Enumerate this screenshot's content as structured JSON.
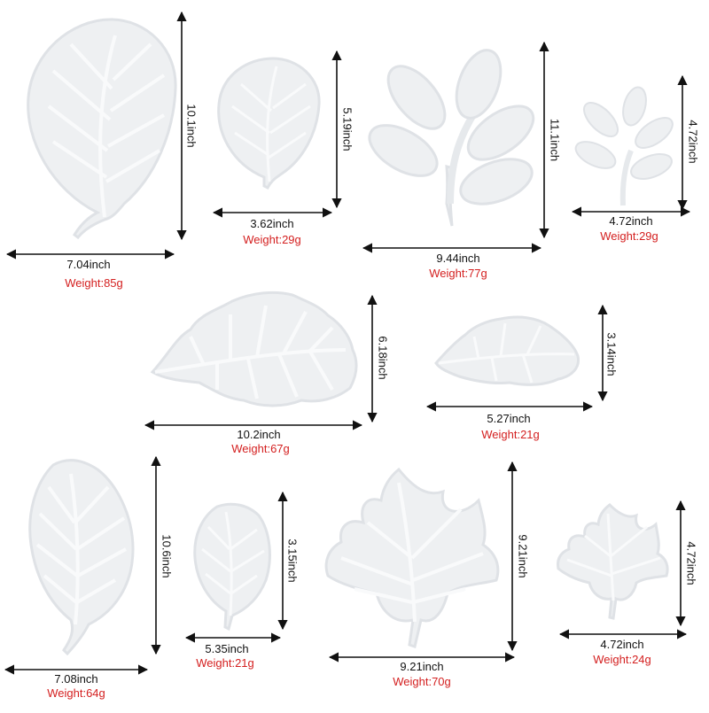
{
  "colors": {
    "dimension_text": "#111111",
    "weight_text": "#d42020",
    "mold": "#eef0f2",
    "mold_edge": "#dfe2e6",
    "vein": "#f9fafb",
    "arrow": "#111111"
  },
  "items": [
    {
      "id": "monstera-large",
      "shape": "monstera",
      "width": "7.04inch",
      "height": "10.1inch",
      "weight": "Weight:85g"
    },
    {
      "id": "monstera-small",
      "shape": "monstera",
      "width": "3.62inch",
      "height": "5.19inch",
      "weight": "Weight:29g"
    },
    {
      "id": "branch-large",
      "shape": "branch",
      "width": "9.44inch",
      "height": "11.1inch",
      "weight": "Weight:77g"
    },
    {
      "id": "branch-small",
      "shape": "branch",
      "width": "4.72inch",
      "height": "4.72inch",
      "weight": "Weight:29g"
    },
    {
      "id": "oak-large",
      "shape": "oak",
      "width": "10.2inch",
      "height": "6.18inch",
      "weight": "Weight:67g"
    },
    {
      "id": "oak-small",
      "shape": "oak",
      "width": "5.27inch",
      "height": "3.14inch",
      "weight": "Weight:21g"
    },
    {
      "id": "birch-large",
      "shape": "birch",
      "width": "7.08inch",
      "height": "10.6inch",
      "weight": "Weight:64g"
    },
    {
      "id": "birch-small",
      "shape": "birch",
      "width": "5.35inch",
      "height": "3.15inch",
      "weight": "Weight:21g"
    },
    {
      "id": "maple-large",
      "shape": "maple",
      "width": "9.21inch",
      "height": "9.21inch",
      "weight": "Weight:70g"
    },
    {
      "id": "maple-small",
      "shape": "maple",
      "width": "4.72inch",
      "height": "4.72inch",
      "weight": "Weight:24g"
    }
  ]
}
